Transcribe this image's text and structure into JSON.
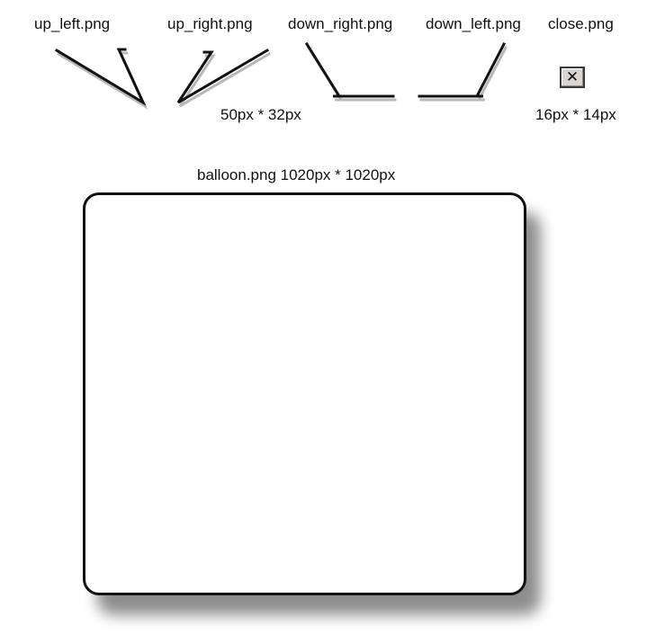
{
  "labels": {
    "up_left": "up_left.png",
    "up_right": "up_right.png",
    "down_right": "down_right.png",
    "down_left": "down_left.png",
    "close": "close.png",
    "arrow_size": "50px * 32px",
    "close_size": "16px * 14px",
    "balloon": "balloon.png 1020px * 1020px"
  },
  "icons": {
    "close": "close-icon",
    "close_glyph": "✕"
  },
  "colors": {
    "stroke": "#111111",
    "close_bg": "#d9d6cf",
    "balloon_fill": "#ffffff"
  }
}
